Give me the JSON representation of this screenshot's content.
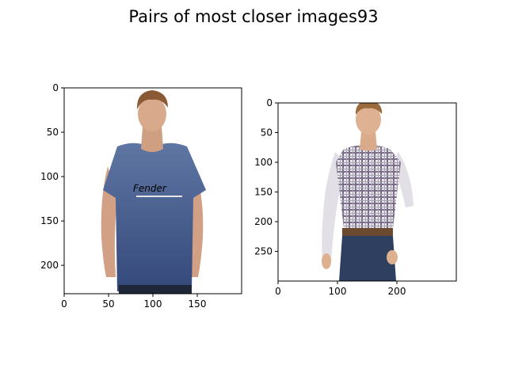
{
  "figure": {
    "title": "Pairs of most closer images93"
  },
  "chart_data": [
    {
      "type": "image",
      "title": "",
      "image_description": "man-in-blue-fender-tshirt",
      "xlim": [
        0,
        200
      ],
      "ylim": [
        232,
        0
      ],
      "xticks": [
        0,
        50,
        100,
        150
      ],
      "yticks": [
        0,
        50,
        100,
        150,
        200
      ],
      "colors": {
        "shirt": "#4f6591",
        "shirt_dark": "#33466f",
        "skin": "#d6a488",
        "hair": "#8a5a34",
        "logo": "#f2f2f2"
      }
    },
    {
      "type": "image",
      "title": "",
      "image_description": "man-in-plaid-shirt-and-jeans",
      "xlim": [
        0,
        300
      ],
      "ylim": [
        300,
        0
      ],
      "xticks": [
        0,
        100,
        200
      ],
      "yticks": [
        0,
        50,
        100,
        150,
        200,
        250
      ],
      "colors": {
        "shirt": "#e7e4e8",
        "plaid": "#7b6f88",
        "skin": "#ddb090",
        "hair": "#9a6a3c",
        "belt": "#6b4a2f",
        "jeans": "#2f3f5f"
      }
    }
  ]
}
